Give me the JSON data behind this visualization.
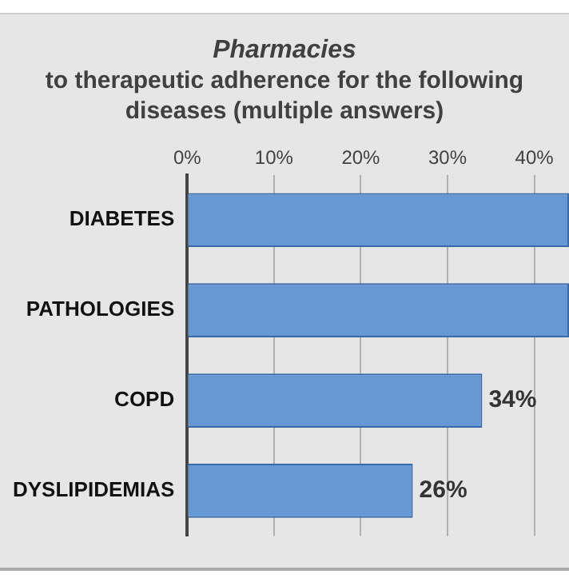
{
  "chart_data": {
    "type": "bar",
    "orientation": "horizontal",
    "title": "Pharmacies",
    "subtitle": "to therapeutic adherence for the following diseases (multiple answers)",
    "categories": [
      "DIABETES",
      "PATHOLOGIES",
      "COPD",
      "DYSLIPIDEMIAS"
    ],
    "values": [
      44,
      44,
      34,
      26
    ],
    "value_labels": [
      null,
      null,
      "34%",
      "26%"
    ],
    "color": "#6698d4",
    "xlim": [
      0,
      44
    ],
    "xticks": [
      {
        "value": 0,
        "label": "0%"
      },
      {
        "value": 10,
        "label": "10%"
      },
      {
        "value": 20,
        "label": "20%"
      },
      {
        "value": 30,
        "label": "30%"
      },
      {
        "value": 40,
        "label": "40%"
      }
    ],
    "grid": "x",
    "legend": false
  }
}
